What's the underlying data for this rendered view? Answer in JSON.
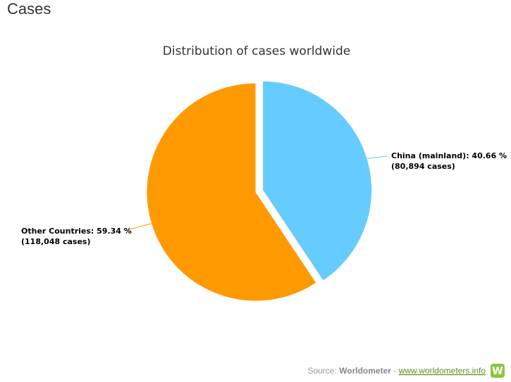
{
  "header": "Cases",
  "chart_data": {
    "type": "pie",
    "title": "Distribution of cases worldwide",
    "categories": [
      "China (mainland)",
      "Other Countries"
    ],
    "values": [
      40.66,
      59.34
    ],
    "value_labels": [
      "China (mainland): 40.66 %",
      "Other Countries: 59.34 %"
    ],
    "cases": [
      80894,
      118048
    ],
    "cases_labels": [
      "(80,894 cases)",
      "(118,048 cases)"
    ],
    "colors": [
      "#66ccff",
      "#ff9900"
    ],
    "sliced": [
      true,
      false
    ]
  },
  "source": {
    "label": "Source:",
    "name": "Worldometer",
    "separator": "-",
    "link": "www.worldometers.info",
    "logo": "W"
  }
}
